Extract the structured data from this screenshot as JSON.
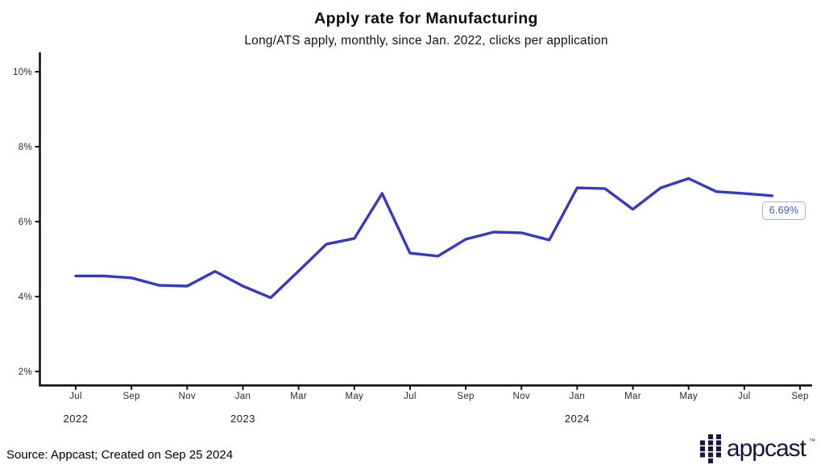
{
  "header": {
    "title": "Apply rate for Manufacturing",
    "subtitle": "Long/ATS apply, monthly, since Jan. 2022, clicks per application"
  },
  "chart_data": {
    "type": "line",
    "title": "Apply rate for Manufacturing",
    "subtitle": "Long/ATS apply, monthly, since Jan. 2022, clicks per application",
    "unit": "percent",
    "ylim": [
      2,
      10
    ],
    "grid": false,
    "legend": "none",
    "line_color": "#3838c0",
    "axis_color": "#111111",
    "x": [
      "Jul 2022",
      "Aug 2022",
      "Sep 2022",
      "Oct 2022",
      "Nov 2022",
      "Dec 2022",
      "Jan 2023",
      "Feb 2023",
      "Mar 2023",
      "Apr 2023",
      "May 2023",
      "Jun 2023",
      "Jul 2023",
      "Aug 2023",
      "Sep 2023",
      "Oct 2023",
      "Nov 2023",
      "Dec 2023",
      "Jan 2024",
      "Feb 2024",
      "Mar 2024",
      "Apr 2024",
      "May 2024",
      "Jun 2024",
      "Jul 2024",
      "Aug 2024"
    ],
    "values": [
      4.55,
      4.55,
      4.5,
      4.3,
      4.28,
      4.67,
      4.28,
      3.97,
      4.68,
      5.4,
      5.55,
      6.75,
      5.16,
      5.08,
      5.53,
      5.72,
      5.7,
      5.51,
      6.9,
      6.88,
      6.33,
      6.9,
      7.15,
      6.8,
      6.75,
      6.69
    ],
    "y_ticks": [
      "2%",
      "4%",
      "6%",
      "8%",
      "10%"
    ],
    "x_ticks": [
      "Jul",
      "Sep",
      "Nov",
      "Jan",
      "Mar",
      "May",
      "Jul",
      "Sep",
      "Nov",
      "Jan",
      "Mar",
      "May",
      "Jul",
      "Sep"
    ],
    "year_labels": [
      {
        "label": "2022",
        "month_index": 0
      },
      {
        "label": "2023",
        "month_index": 6
      },
      {
        "label": "2024",
        "month_index": 18
      }
    ],
    "end_label": "6.69%"
  },
  "annotation": {
    "end_label_text": "6.69%",
    "text_color": "#4553cb",
    "border_color": "#a6addf"
  },
  "footer": {
    "source": "Source: Appcast; Created on Sep 25 2024",
    "logo_text": "appcast",
    "logo_tm": "™",
    "logo_color": "#16163e"
  }
}
